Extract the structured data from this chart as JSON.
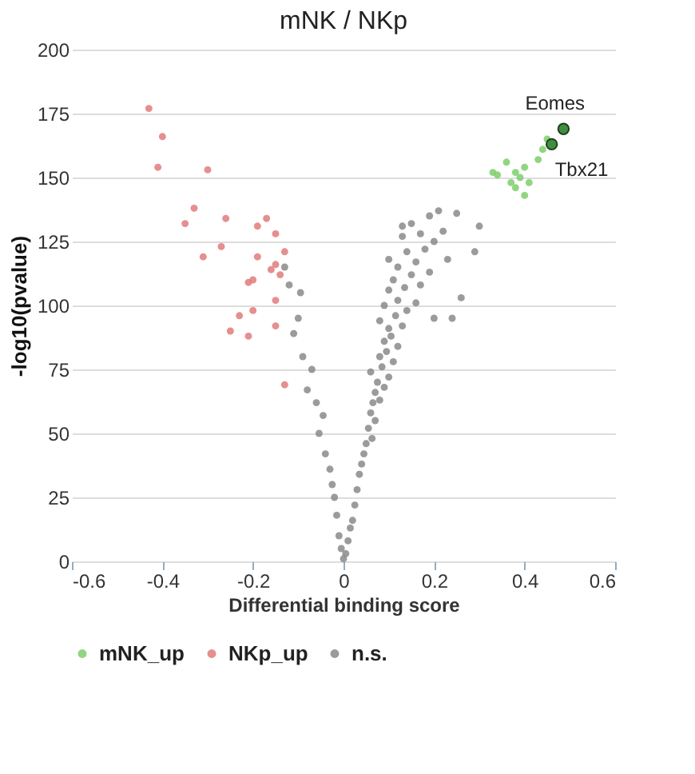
{
  "chart_data": {
    "type": "scatter",
    "title": "mNK / NKp",
    "xlabel": "Differential binding score",
    "ylabel": "-log10(pvalue)",
    "xlim": [
      -0.6,
      0.6
    ],
    "xticks": [
      -0.6,
      -0.4,
      -0.2,
      0,
      0.2,
      0.4,
      0.6
    ],
    "ylim": [
      0,
      200
    ],
    "yticks": [
      0,
      25,
      50,
      75,
      100,
      125,
      150,
      175,
      200
    ],
    "grid": "y",
    "legend": "bottom",
    "marker": "circle",
    "series": [
      {
        "name": "mNK_up",
        "color": "#7ccf6a",
        "x": [
          0.36,
          0.34,
          0.38,
          0.39,
          0.4,
          0.37,
          0.4,
          0.43,
          0.44,
          0.45,
          0.33,
          0.41,
          0.38
        ],
        "values": [
          156,
          151,
          152,
          150,
          154,
          148,
          143,
          157,
          161,
          165,
          152,
          148,
          146
        ]
      },
      {
        "name": "NKp_up",
        "color": "#e07b7b",
        "x": [
          -0.43,
          -0.4,
          -0.41,
          -0.3,
          -0.33,
          -0.35,
          -0.26,
          -0.31,
          -0.27,
          -0.19,
          -0.17,
          -0.19,
          -0.15,
          -0.15,
          -0.16,
          -0.14,
          -0.13,
          -0.21,
          -0.2,
          -0.15,
          -0.23,
          -0.25,
          -0.2,
          -0.21,
          -0.15,
          -0.13
        ],
        "values": [
          177,
          166,
          154,
          153,
          138,
          132,
          134,
          119,
          123,
          131,
          134,
          119,
          128,
          116,
          114,
          112,
          121,
          109,
          110,
          102,
          96,
          90,
          98,
          88,
          92,
          69
        ]
      },
      {
        "name": "n.s.",
        "color": "#8a8a8a",
        "x": [
          0,
          0.005,
          -0.005,
          0.01,
          -0.01,
          0.015,
          0.02,
          -0.015,
          0.025,
          -0.02,
          0.03,
          -0.025,
          0.035,
          0.04,
          -0.03,
          0.045,
          -0.04,
          0.05,
          0.063,
          -0.054,
          0.055,
          0.07,
          -0.045,
          0.06,
          0.065,
          0.08,
          -0.06,
          0.07,
          0.09,
          -0.08,
          0.075,
          0.1,
          0.06,
          0.085,
          -0.07,
          0.11,
          0.08,
          0.095,
          -0.09,
          0.12,
          0.09,
          -0.11,
          0.105,
          0.1,
          0.13,
          0.08,
          0.115,
          -0.1,
          0.14,
          0.09,
          0.12,
          0.16,
          -0.095,
          0.1,
          0.135,
          0.17,
          0.11,
          -0.12,
          0.15,
          0.19,
          0.12,
          0.1,
          0.16,
          -0.13,
          0.14,
          0.18,
          0.2,
          0.13,
          0.17,
          0.22,
          0.15,
          0.13,
          0.19,
          0.21,
          0.25,
          0.3,
          0.29,
          0.26,
          0.24,
          0.23,
          0.2
        ],
        "values": [
          1,
          3,
          5,
          8,
          10,
          13,
          16,
          18,
          22,
          25,
          28,
          30,
          34,
          38,
          36,
          42,
          42,
          46,
          48,
          50,
          52,
          55,
          57,
          58,
          62,
          63,
          62,
          66,
          68,
          67,
          70,
          72,
          74,
          76,
          75,
          78,
          80,
          82,
          80,
          84,
          86,
          89,
          88,
          91,
          92,
          94,
          96,
          95,
          98,
          100,
          102,
          101,
          105,
          106,
          107,
          108,
          110,
          108,
          112,
          113,
          115,
          118,
          117,
          115,
          121,
          122,
          125,
          127,
          128,
          129,
          132,
          131,
          135,
          137,
          136,
          131,
          121,
          103,
          95,
          118,
          95
        ]
      },
      {
        "color": "#3f8f3f",
        "x": [
          0.486,
          0.46
        ],
        "values": [
          169,
          163
        ]
      }
    ],
    "annotations": [
      {
        "text": "Eomes",
        "x": 0.486,
        "y": 169
      },
      {
        "text": "Tbx21",
        "x": 0.46,
        "y": 163
      }
    ]
  }
}
